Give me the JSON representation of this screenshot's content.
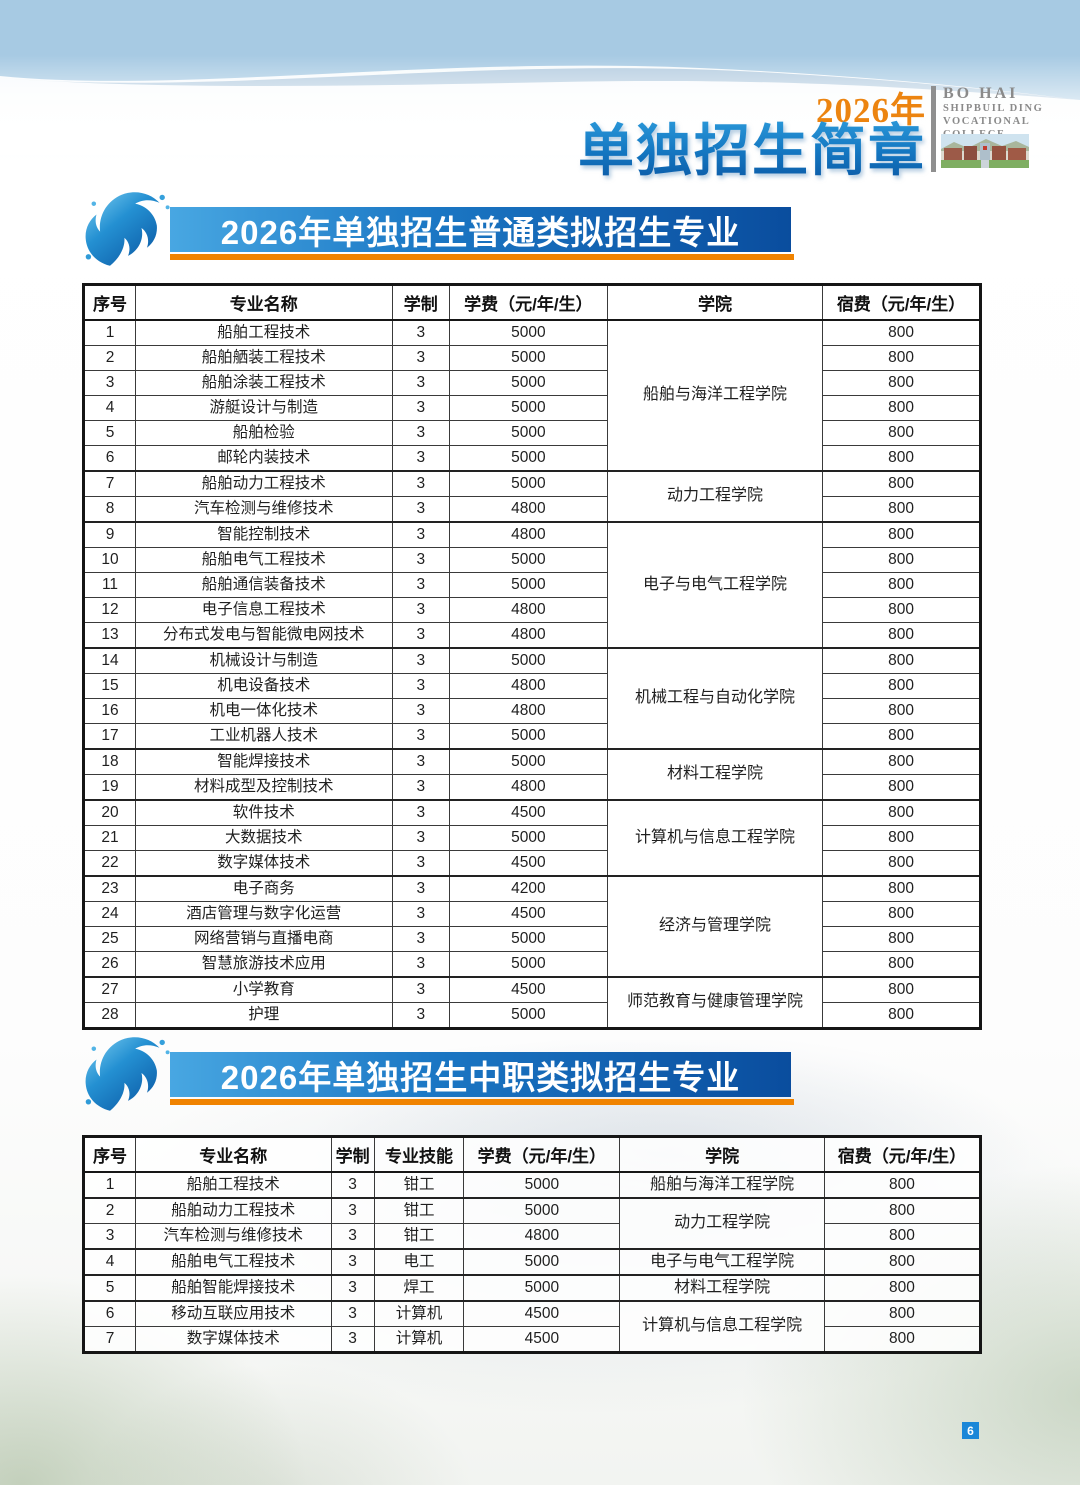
{
  "header": {
    "year": "2026年",
    "title": "单独招生简章",
    "college_en": [
      "BO  HAI",
      "SHIPBUIL  DING",
      "VOCATIONAL",
      "COLLECE"
    ]
  },
  "sections": [
    {
      "id": "general",
      "title": "2026年单独招生普通类拟招生专业"
    },
    {
      "id": "vocational",
      "title": "2026年单独招生中职类拟招生专业"
    }
  ],
  "tables": [
    {
      "id": "general",
      "headers": [
        "序号",
        "专业名称",
        "学制",
        "学费（元/年/生）",
        "学院",
        "宿费（元/年/生）"
      ],
      "merge_col": 4,
      "rows": [
        [
          "1",
          "船舶工程技术",
          "3",
          "5000",
          "船舶与海洋工程学院",
          "800"
        ],
        [
          "2",
          "船舶舾装工程技术",
          "3",
          "5000",
          "船舶与海洋工程学院",
          "800"
        ],
        [
          "3",
          "船舶涂装工程技术",
          "3",
          "5000",
          "船舶与海洋工程学院",
          "800"
        ],
        [
          "4",
          "游艇设计与制造",
          "3",
          "5000",
          "船舶与海洋工程学院",
          "800"
        ],
        [
          "5",
          "船舶检验",
          "3",
          "5000",
          "船舶与海洋工程学院",
          "800"
        ],
        [
          "6",
          "邮轮内装技术",
          "3",
          "5000",
          "船舶与海洋工程学院",
          "800"
        ],
        [
          "7",
          "船舶动力工程技术",
          "3",
          "5000",
          "动力工程学院",
          "800"
        ],
        [
          "8",
          "汽车检测与维修技术",
          "3",
          "4800",
          "动力工程学院",
          "800"
        ],
        [
          "9",
          "智能控制技术",
          "3",
          "4800",
          "电子与电气工程学院",
          "800"
        ],
        [
          "10",
          "船舶电气工程技术",
          "3",
          "5000",
          "电子与电气工程学院",
          "800"
        ],
        [
          "11",
          "船舶通信装备技术",
          "3",
          "5000",
          "电子与电气工程学院",
          "800"
        ],
        [
          "12",
          "电子信息工程技术",
          "3",
          "4800",
          "电子与电气工程学院",
          "800"
        ],
        [
          "13",
          "分布式发电与智能微电网技术",
          "3",
          "4800",
          "电子与电气工程学院",
          "800"
        ],
        [
          "14",
          "机械设计与制造",
          "3",
          "5000",
          "机械工程与自动化学院",
          "800"
        ],
        [
          "15",
          "机电设备技术",
          "3",
          "4800",
          "机械工程与自动化学院",
          "800"
        ],
        [
          "16",
          "机电一体化技术",
          "3",
          "4800",
          "机械工程与自动化学院",
          "800"
        ],
        [
          "17",
          "工业机器人技术",
          "3",
          "5000",
          "机械工程与自动化学院",
          "800"
        ],
        [
          "18",
          "智能焊接技术",
          "3",
          "5000",
          "材料工程学院",
          "800"
        ],
        [
          "19",
          "材料成型及控制技术",
          "3",
          "4800",
          "材料工程学院",
          "800"
        ],
        [
          "20",
          "软件技术",
          "3",
          "4500",
          "计算机与信息工程学院",
          "800"
        ],
        [
          "21",
          "大数据技术",
          "3",
          "5000",
          "计算机与信息工程学院",
          "800"
        ],
        [
          "22",
          "数字媒体技术",
          "3",
          "4500",
          "计算机与信息工程学院",
          "800"
        ],
        [
          "23",
          "电子商务",
          "3",
          "4200",
          "经济与管理学院",
          "800"
        ],
        [
          "24",
          "酒店管理与数字化运营",
          "3",
          "4500",
          "经济与管理学院",
          "800"
        ],
        [
          "25",
          "网络营销与直播电商",
          "3",
          "5000",
          "经济与管理学院",
          "800"
        ],
        [
          "26",
          "智慧旅游技术应用",
          "3",
          "5000",
          "经济与管理学院",
          "800"
        ],
        [
          "27",
          "小学教育",
          "3",
          "4500",
          "师范教育与健康管理学院",
          "800"
        ],
        [
          "28",
          "护理",
          "3",
          "5000",
          "师范教育与健康管理学院",
          "800"
        ]
      ]
    },
    {
      "id": "vocational",
      "headers": [
        "序号",
        "专业名称",
        "学制",
        "专业技能",
        "学费（元/年/生）",
        "学院",
        "宿费（元/年/生）"
      ],
      "merge_col": 5,
      "rows": [
        [
          "1",
          "船舶工程技术",
          "3",
          "钳工",
          "5000",
          "船舶与海洋工程学院",
          "800"
        ],
        [
          "2",
          "船舶动力工程技术",
          "3",
          "钳工",
          "5000",
          "动力工程学院",
          "800"
        ],
        [
          "3",
          "汽车检测与维修技术",
          "3",
          "钳工",
          "4800",
          "动力工程学院",
          "800"
        ],
        [
          "4",
          "船舶电气工程技术",
          "3",
          "电工",
          "5000",
          "电子与电气工程学院",
          "800"
        ],
        [
          "5",
          "船舶智能焊接技术",
          "3",
          "焊工",
          "5000",
          "材料工程学院",
          "800"
        ],
        [
          "6",
          "移动互联应用技术",
          "3",
          "计算机",
          "4500",
          "计算机与信息工程学院",
          "800"
        ],
        [
          "7",
          "数字媒体技术",
          "3",
          "计算机",
          "4500",
          "计算机与信息工程学院",
          "800"
        ]
      ]
    }
  ],
  "footer": {
    "page_number": "6"
  }
}
